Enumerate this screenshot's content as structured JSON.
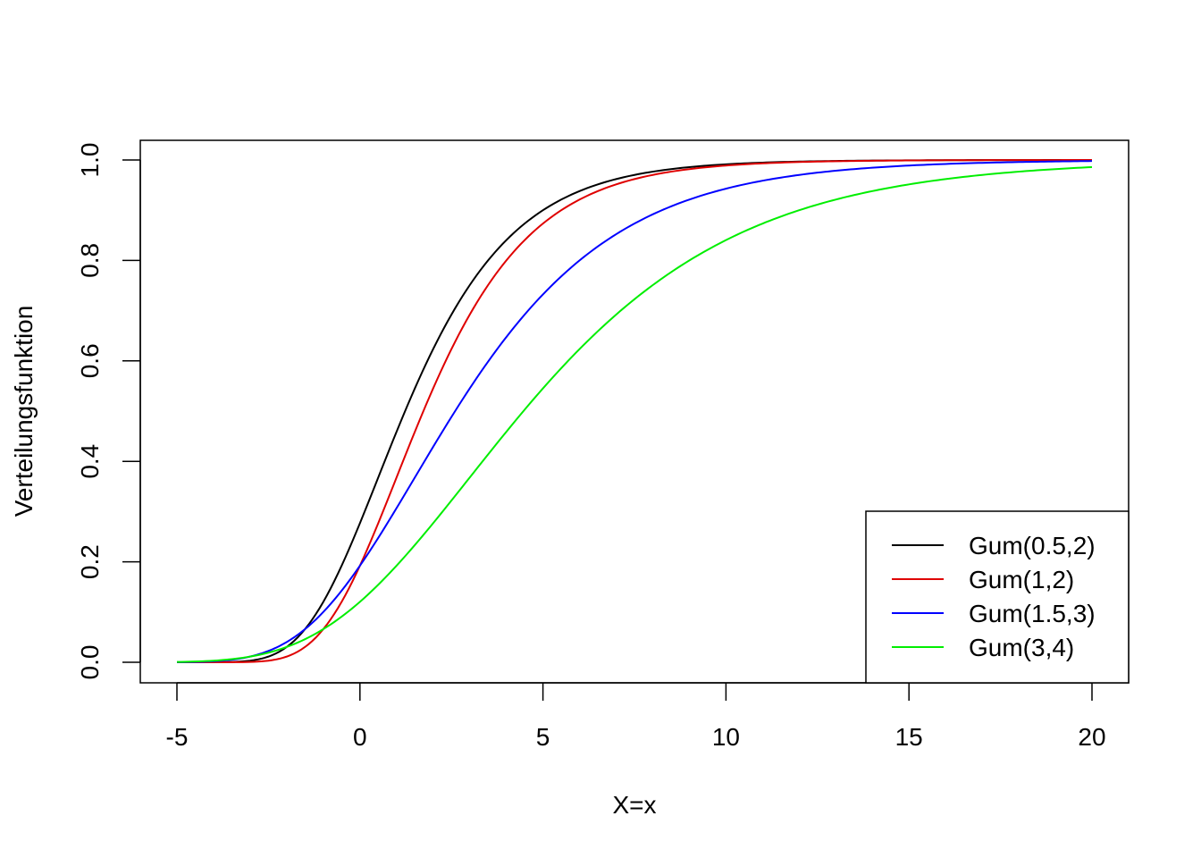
{
  "chart_data": {
    "type": "line",
    "title": "",
    "xlabel": "X=x",
    "ylabel": "Verteilungsfunktion",
    "xlim": [
      -5,
      20
    ],
    "ylim": [
      0,
      1
    ],
    "x_ticks": [
      -5,
      0,
      5,
      10,
      15,
      20
    ],
    "x_tick_labels": [
      "-5",
      "0",
      "5",
      "10",
      "15",
      "20"
    ],
    "y_ticks": [
      0,
      0.2,
      0.4,
      0.6,
      0.8,
      1
    ],
    "y_tick_labels": [
      "0.0",
      "0.2",
      "0.4",
      "0.6",
      "0.8",
      "1.0"
    ],
    "grid": false,
    "legend_position": "bottom-right",
    "series": [
      {
        "name": "Gum(0.5,2)",
        "color": "#000000",
        "mu": 0.5,
        "beta": 2
      },
      {
        "name": "Gum(1,2)",
        "color": "#df0000",
        "mu": 1,
        "beta": 2
      },
      {
        "name": "Gum(1.5,3)",
        "color": "#0000ff",
        "mu": 1.5,
        "beta": 3
      },
      {
        "name": "Gum(3,4)",
        "color": "#00ee00",
        "mu": 3,
        "beta": 4
      }
    ]
  }
}
